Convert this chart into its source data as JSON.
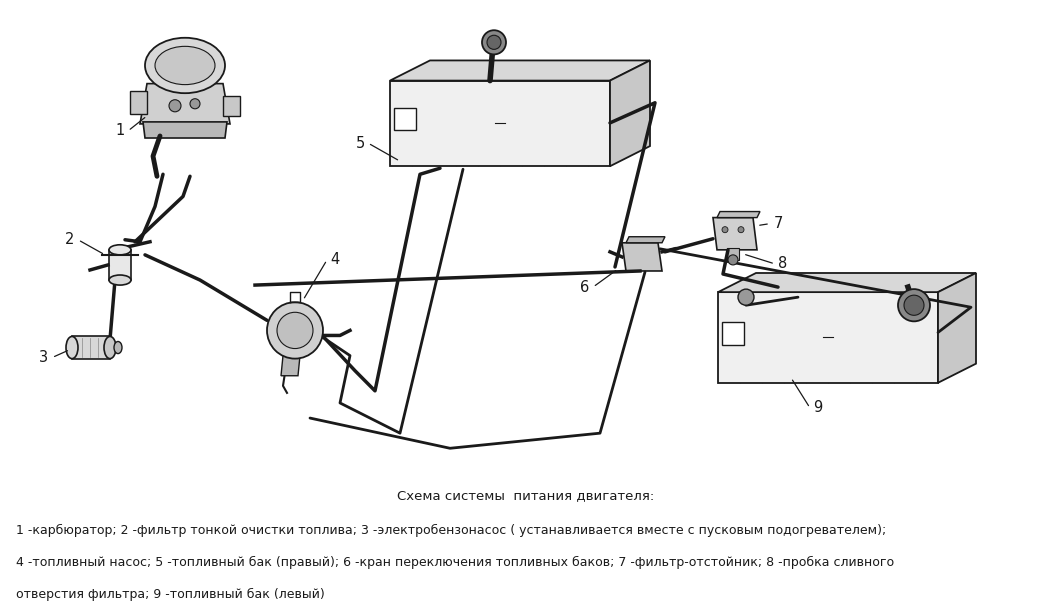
{
  "title": "Схема системы  питания двигателя:",
  "caption_lines": [
    "1 -карбюратор; 2 -фильтр тонкой очистки топлива; 3 -электробензонасос ( устанавливается вместе с пусковым подогревателем);",
    "4 -топливный насос; 5 -топливный бак (правый); 6 -кран переключения топливных баков; 7 -фильтр-отстойник; 8 -пробка сливного",
    "отверстия фильтра; 9 -топливный бак (левый)"
  ],
  "bg_color": "#ffffff",
  "text_color": "#1a1a1a",
  "title_fontsize": 9.5,
  "caption_fontsize": 9.0,
  "fig_width": 10.52,
  "fig_height": 6.07
}
